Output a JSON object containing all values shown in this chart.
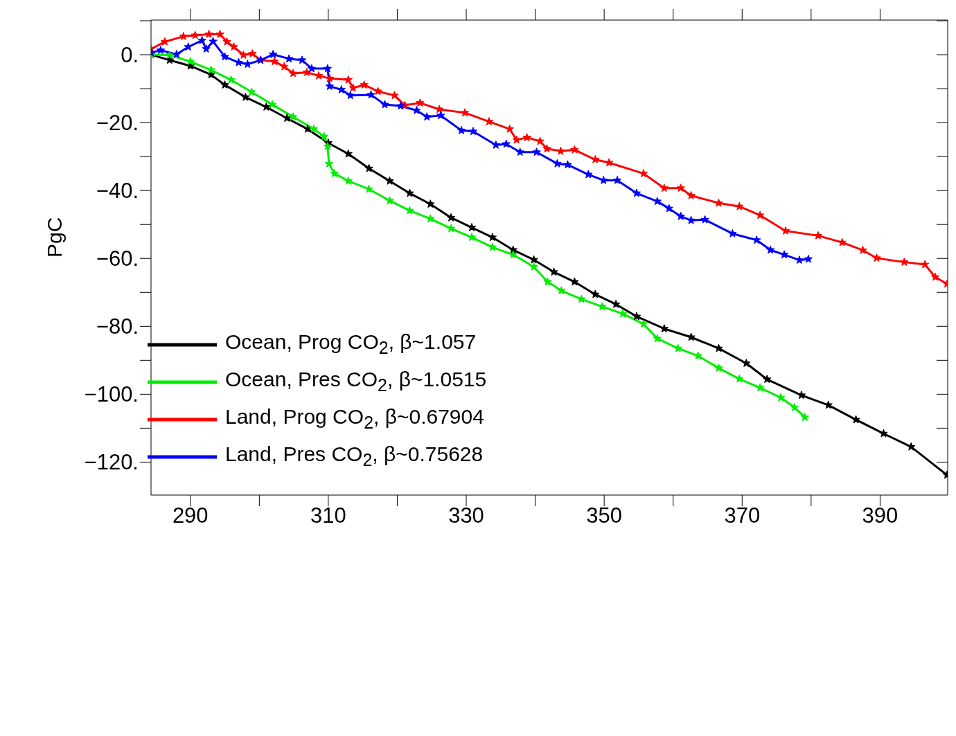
{
  "chart_data": {
    "type": "line",
    "ylabel": "PgC",
    "xlim": [
      284.3,
      399.8
    ],
    "ylim": [
      -129.7,
      10.2
    ],
    "xticks": [
      290,
      {
        "value": 300,
        "label": null
      },
      310,
      {
        "value": 320,
        "label": null
      },
      330,
      {
        "value": 340,
        "label": null
      },
      350,
      {
        "value": 360,
        "label": null
      },
      370,
      {
        "value": 380,
        "label": null
      },
      390
    ],
    "yticks": [
      {
        "value": 10,
        "label": null
      },
      {
        "value": 0,
        "label": "0."
      },
      {
        "value": -10,
        "label": null
      },
      {
        "value": -20,
        "label": "−20."
      },
      {
        "value": -30,
        "label": null
      },
      {
        "value": -40,
        "label": "−40."
      },
      {
        "value": -50,
        "label": null
      },
      {
        "value": -60,
        "label": "−60."
      },
      {
        "value": -70,
        "label": null
      },
      {
        "value": -80,
        "label": "−80."
      },
      {
        "value": -90,
        "label": null
      },
      {
        "value": -100,
        "label": "−100."
      },
      {
        "value": -110,
        "label": null
      },
      {
        "value": -120,
        "label": "−120."
      }
    ],
    "legend": "bottom left",
    "marker": "star",
    "line_style": "solid",
    "series": [
      {
        "name": "Ocean, Prog CO$_{2}$, β~1.057",
        "color": "#000000",
        "x": [
          284.3,
          287,
          290,
          293,
          295,
          298,
          301,
          304,
          307,
          310,
          312.9,
          315.9,
          318.9,
          321.8,
          324.8,
          327.8,
          330.8,
          333.8,
          336.8,
          339.8,
          342.7,
          345.7,
          348.7,
          351.7,
          354.7,
          358.7,
          362.6,
          366.6,
          370.6,
          373.6,
          378.6,
          382.5,
          386.5,
          390.5,
          394.5,
          399.7
        ],
        "values": [
          0,
          -1.6,
          -3.3,
          -5.9,
          -8.9,
          -12.5,
          -15.4,
          -18.7,
          -21.9,
          -26.0,
          -29.2,
          -33.5,
          -37.2,
          -40.8,
          -44.0,
          -48.0,
          -50.9,
          -53.8,
          -57.5,
          -60.4,
          -64.0,
          -66.9,
          -70.6,
          -73.5,
          -77.1,
          -80.7,
          -83.2,
          -86.5,
          -90.9,
          -95.6,
          -100.3,
          -103.2,
          -107.5,
          -111.6,
          -115.5,
          -123.8
        ]
      },
      {
        "name": "Ocean, Pres CO$_{2}$, β~1.0515",
        "color": "#00ee00",
        "x": [
          284.3,
          287.0,
          290,
          293.0,
          295.9,
          298.9,
          301.9,
          304.9,
          307.9,
          309.4,
          309.9,
          310.1,
          310.9,
          312.9,
          315.9,
          318.9,
          321.8,
          324.8,
          327.8,
          330.8,
          333.8,
          336.8,
          339.8,
          341.8,
          343.8,
          346.7,
          349.7,
          352.7,
          355.7,
          357.7,
          360.7,
          363.6,
          366.6,
          369.6,
          372.6,
          375.6,
          377.6,
          379.1
        ],
        "values": [
          0,
          -0.1,
          -2.0,
          -4.5,
          -7.4,
          -11.0,
          -14.7,
          -18.3,
          -21.9,
          -24.1,
          -27.0,
          -32.1,
          -35.0,
          -37.2,
          -39.6,
          -43.0,
          -45.9,
          -48.3,
          -51.2,
          -53.8,
          -56.7,
          -58.9,
          -62.5,
          -66.9,
          -69.5,
          -72.0,
          -74.2,
          -76.3,
          -79.3,
          -83.6,
          -86.5,
          -88.7,
          -92.3,
          -95.5,
          -98.1,
          -101.0,
          -103.9,
          -106.8
        ]
      },
      {
        "name": "Land, Prog CO$_{2}$, β~0.67904",
        "color": "#ff0000",
        "x": [
          284.3,
          286.3,
          289.0,
          290.7,
          292.7,
          294.3,
          295.3,
          296.3,
          297.7,
          299.0,
          300.2,
          302.2,
          303.6,
          304.9,
          306.9,
          308.6,
          310.2,
          312.9,
          313.6,
          315.2,
          317.2,
          319.6,
          321.1,
          323.3,
          326.1,
          329.8,
          333.3,
          336.3,
          337.3,
          338.8,
          340.7,
          341.7,
          343.7,
          345.7,
          348.7,
          350.7,
          355.7,
          358.7,
          361.1,
          362.6,
          366.6,
          369.6,
          372.6,
          376.3,
          381.0,
          384.5,
          387.5,
          389.5,
          393.5,
          396.5,
          398.0,
          399.7
        ],
        "values": [
          1.7,
          3.8,
          5.4,
          5.7,
          6.0,
          6.0,
          3.8,
          2.3,
          -0.1,
          0.3,
          -1.6,
          -2.0,
          -3.5,
          -5.5,
          -5.2,
          -6.2,
          -7.0,
          -7.4,
          -9.8,
          -8.9,
          -10.8,
          -12.0,
          -14.9,
          -14.2,
          -16.1,
          -17.1,
          -19.7,
          -21.9,
          -25.1,
          -24.4,
          -25.5,
          -27.7,
          -28.4,
          -28.0,
          -30.9,
          -31.8,
          -35.0,
          -39.3,
          -39.3,
          -41.5,
          -43.7,
          -44.7,
          -47.3,
          -51.9,
          -53.3,
          -55.3,
          -57.6,
          -59.9,
          -61.1,
          -61.8,
          -65.5,
          -67.5
        ]
      },
      {
        "name": "Land, Pres CO$_{2}$, β~0.75628",
        "color": "#0000ff",
        "x": [
          284.3,
          285.7,
          288.0,
          289.7,
          291.7,
          292.3,
          293.3,
          295.0,
          297.0,
          298.3,
          300.2,
          302.0,
          304.3,
          306.2,
          307.6,
          309.9,
          310.2,
          311.9,
          313.2,
          316.2,
          318.2,
          320.5,
          322.8,
          324.3,
          326.3,
          329.3,
          331.0,
          334.3,
          335.8,
          337.8,
          340.2,
          343.2,
          344.7,
          347.7,
          349.9,
          351.9,
          354.7,
          357.7,
          359.4,
          361.1,
          362.6,
          364.6,
          368.6,
          372.1,
          374.1,
          376.1,
          378.3,
          379.6
        ],
        "values": [
          0.6,
          1.3,
          0.1,
          2.3,
          4.2,
          1.7,
          3.9,
          -0.6,
          -2.3,
          -2.8,
          -1.6,
          0.1,
          -1.2,
          -1.6,
          -4.1,
          -4.1,
          -9.3,
          -10.3,
          -12.0,
          -11.8,
          -14.7,
          -15.1,
          -16.4,
          -18.3,
          -17.9,
          -22.3,
          -22.6,
          -26.6,
          -26.3,
          -28.7,
          -28.7,
          -32.1,
          -32.4,
          -35.3,
          -37.0,
          -37.0,
          -40.8,
          -43.2,
          -45.3,
          -47.6,
          -48.8,
          -48.6,
          -52.7,
          -54.6,
          -57.5,
          -58.9,
          -60.5,
          -60.2
        ]
      }
    ]
  }
}
